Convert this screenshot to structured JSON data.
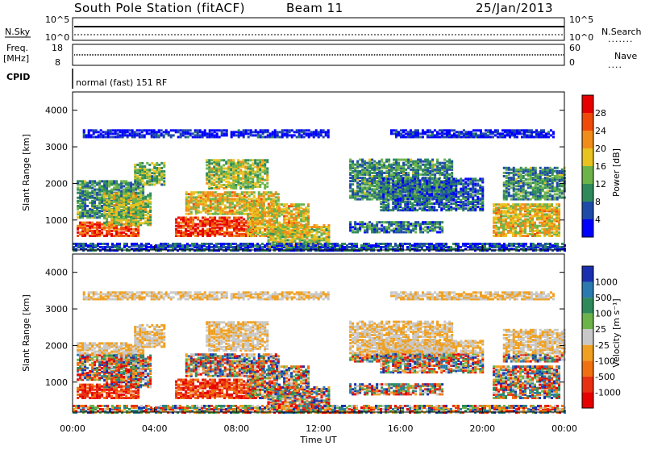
{
  "header": {
    "station": "South Pole Station (fitACF)",
    "beam": "Beam 11",
    "date": "25/Jan/2013"
  },
  "top_panels": {
    "nsky_label": "N.Sky",
    "nsky_ticks": [
      "10^5",
      "10^0"
    ],
    "nsearch_label": "N.Search",
    "nsearch_ticks": [
      "10^5",
      "10^0"
    ],
    "freq_label_1": "Freq.",
    "freq_label_2": "[MHz]",
    "freq_ticks": [
      "18",
      "8"
    ],
    "nave_label": "Nave",
    "nave_ticks": [
      "60",
      "0"
    ],
    "cpid_label": "CPID",
    "cpid_text": "normal (fast) 151 RF"
  },
  "chart_data": [
    {
      "type": "heatmap",
      "name": "power",
      "ylabel": "Slant Range [km]",
      "yticks": [
        "1000",
        "2000",
        "3000",
        "4000"
      ],
      "ylim": [
        180,
        4500
      ],
      "xlim_hours": [
        0,
        24
      ],
      "colorbar_label": "Power [dB]",
      "colorbar_ticks": [
        "4",
        "8",
        "12",
        "16",
        "20",
        "24",
        "28"
      ],
      "colorbar_colors": [
        "#0000ff",
        "#1e4aa8",
        "#2e8a5a",
        "#6cb34a",
        "#e8c21e",
        "#f08c1a",
        "#f04a0a",
        "#e60000"
      ]
    },
    {
      "type": "heatmap",
      "name": "velocity",
      "ylabel": "Slant Range [km]",
      "yticks": [
        "1000",
        "2000",
        "3000",
        "4000"
      ],
      "ylim": [
        180,
        4500
      ],
      "xlim_hours": [
        0,
        24
      ],
      "xticks": [
        "00:00",
        "04:00",
        "08:00",
        "12:00",
        "16:00",
        "20:00",
        "00:00"
      ],
      "xlabel": "Time UT",
      "colorbar_label": "Velocity [m s⁻¹]",
      "colorbar_ticks": [
        "1000",
        "500",
        "100",
        "25",
        "-25",
        "-100",
        "-500",
        "-1000"
      ],
      "colorbar_colors": [
        "#1a2fb0",
        "#2a7ab0",
        "#2e8a5a",
        "#6cb34a",
        "#c8c8c8",
        "#f0a020",
        "#f07010",
        "#e83010",
        "#e60000"
      ]
    }
  ]
}
